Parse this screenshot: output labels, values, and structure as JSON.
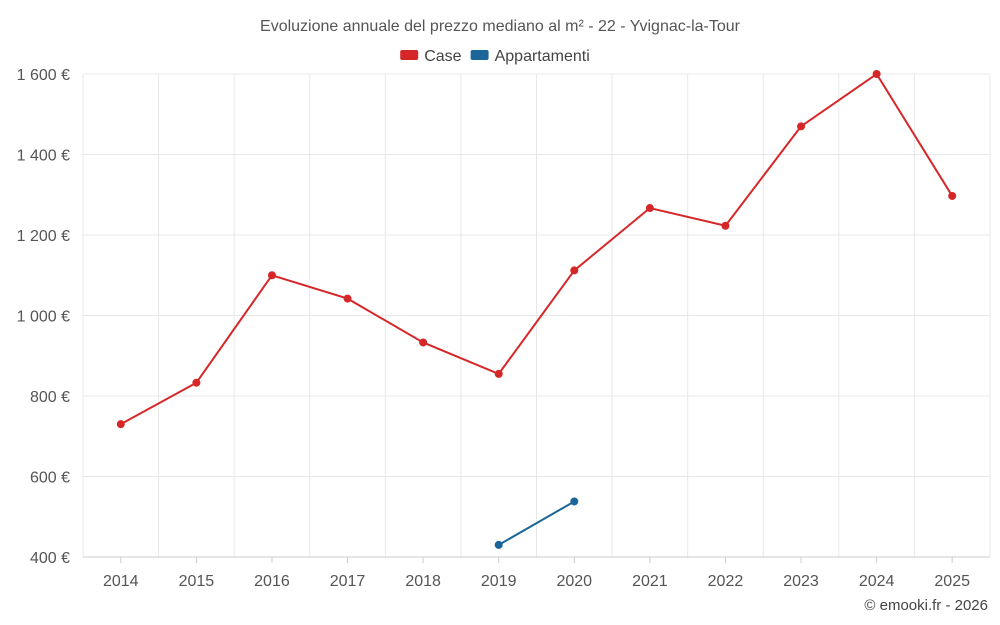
{
  "chart_data": {
    "type": "line",
    "title": "Evoluzione annuale del prezzo mediano al m² - 22 - Yvignac-la-Tour",
    "x": [
      "2014",
      "2015",
      "2016",
      "2017",
      "2018",
      "2019",
      "2020",
      "2021",
      "2022",
      "2023",
      "2024",
      "2025"
    ],
    "ylim": [
      400,
      1600
    ],
    "yticks": [
      400,
      600,
      800,
      1000,
      1200,
      1400,
      1600
    ],
    "ytick_labels": [
      "400 €",
      "600 €",
      "800 €",
      "1 000 €",
      "1 200 €",
      "1 400 €",
      "1 600 €"
    ],
    "grid": true,
    "legend_position": "top-center",
    "series": [
      {
        "name": "Case",
        "color": "#d62728",
        "values": [
          730,
          833,
          1100,
          1042,
          933,
          855,
          1112,
          1267,
          1223,
          1470,
          1600,
          1297
        ]
      },
      {
        "name": "Appartamenti",
        "color": "#1a6699",
        "values": [
          null,
          null,
          null,
          null,
          null,
          430,
          538,
          null,
          null,
          null,
          null,
          null
        ]
      }
    ],
    "credit": "© emooki.fr - 2026"
  }
}
